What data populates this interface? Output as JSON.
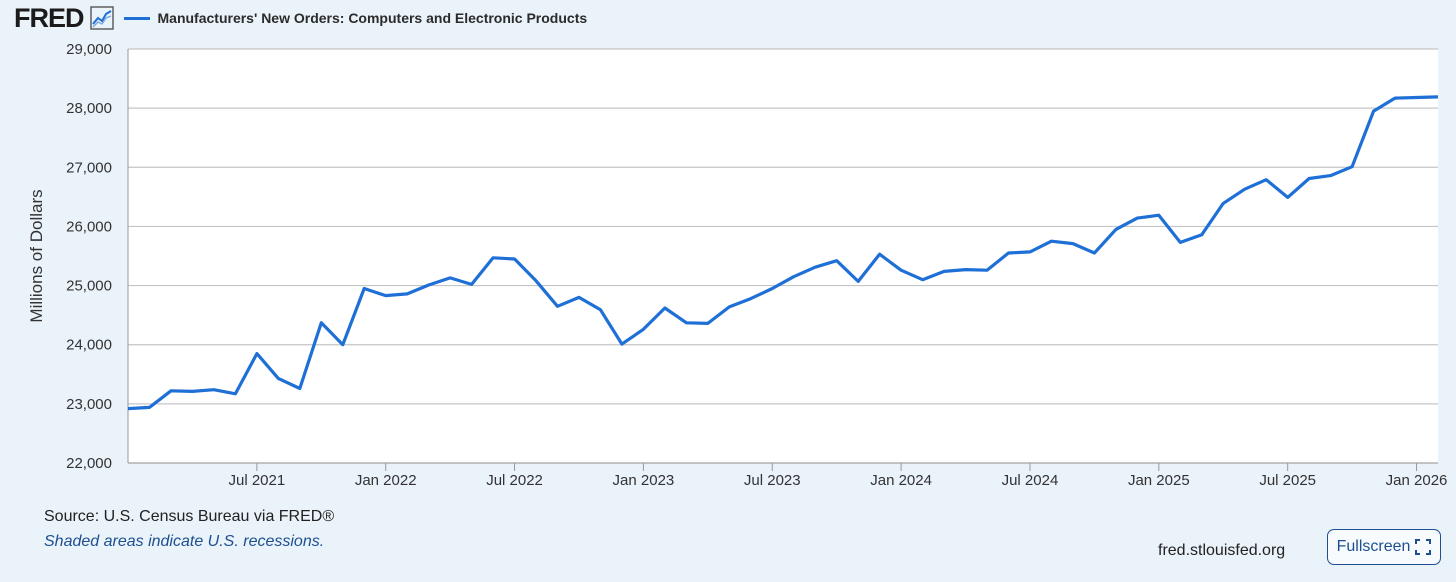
{
  "header": {
    "logo_text": "FRED",
    "logo_icon": "line-chart-icon",
    "legend_label": "Manufacturers' New Orders: Computers and Electronic Products"
  },
  "footer": {
    "source": "Source: U.S. Census Bureau via FRED®",
    "note": "Shaded areas indicate U.S. recessions.",
    "url": "fred.stlouisfed.org",
    "fullscreen_label": "Fullscreen",
    "fullscreen_icon": "fullscreen-icon"
  },
  "colors": {
    "series": "#1e6fd6",
    "background": "#eaf2fa",
    "plot": "#ffffff",
    "grid": "#c5c5c5",
    "accent": "#1d4f91"
  },
  "chart_data": {
    "type": "line",
    "title": "",
    "xlabel": "",
    "ylabel": "Millions of Dollars",
    "ylim": [
      22000,
      29000
    ],
    "yticks": [
      22000,
      23000,
      24000,
      25000,
      26000,
      27000,
      28000,
      29000
    ],
    "ytick_labels": [
      "22,000",
      "23,000",
      "24,000",
      "25,000",
      "26,000",
      "27,000",
      "28,000",
      "29,000"
    ],
    "xlim": [
      "2021-01",
      "2026-02"
    ],
    "xticks": [
      "2021-07",
      "2022-01",
      "2022-07",
      "2023-01",
      "2023-07",
      "2024-01",
      "2024-07",
      "2025-01",
      "2025-07",
      "2026-01"
    ],
    "xtick_labels": [
      "Jul 2021",
      "Jan 2022",
      "Jul 2022",
      "Jan 2023",
      "Jul 2023",
      "Jan 2024",
      "Jul 2024",
      "Jan 2025",
      "Jul 2025",
      "Jan 2026"
    ],
    "grid": true,
    "legend_position": "top-left",
    "series": [
      {
        "name": "Manufacturers' New Orders: Computers and Electronic Products",
        "x": [
          "2021-01",
          "2021-02",
          "2021-03",
          "2021-04",
          "2021-05",
          "2021-06",
          "2021-07",
          "2021-08",
          "2021-09",
          "2021-10",
          "2021-11",
          "2021-12",
          "2022-01",
          "2022-02",
          "2022-03",
          "2022-04",
          "2022-05",
          "2022-06",
          "2022-07",
          "2022-08",
          "2022-09",
          "2022-10",
          "2022-11",
          "2022-12",
          "2023-01",
          "2023-02",
          "2023-03",
          "2023-04",
          "2023-05",
          "2023-06",
          "2023-07",
          "2023-08",
          "2023-09",
          "2023-10",
          "2023-11",
          "2023-12",
          "2024-01",
          "2024-02",
          "2024-03",
          "2024-04",
          "2024-05",
          "2024-06",
          "2024-07",
          "2024-08",
          "2024-09",
          "2024-10",
          "2024-11",
          "2024-12",
          "2025-01",
          "2025-02",
          "2025-03",
          "2025-04",
          "2025-05",
          "2025-06",
          "2025-07",
          "2025-08",
          "2025-09",
          "2025-10",
          "2025-11",
          "2025-12",
          "2026-01",
          "2026-02"
        ],
        "values": [
          22920,
          22940,
          23220,
          23210,
          23240,
          23170,
          23850,
          23430,
          23260,
          24370,
          24000,
          24950,
          24830,
          24860,
          25010,
          25130,
          25020,
          25470,
          25450,
          25080,
          24650,
          24800,
          24590,
          24010,
          24260,
          24620,
          24370,
          24360,
          24640,
          24780,
          24950,
          25150,
          25310,
          25420,
          25070,
          25530,
          25260,
          25100,
          25240,
          25270,
          25260,
          25550,
          25570,
          25750,
          25710,
          25550,
          25950,
          26140,
          26190,
          25730,
          25860,
          26390,
          26630,
          26790,
          26490,
          26810,
          26860,
          27010,
          27950,
          28170,
          28180,
          28190
        ]
      }
    ]
  }
}
